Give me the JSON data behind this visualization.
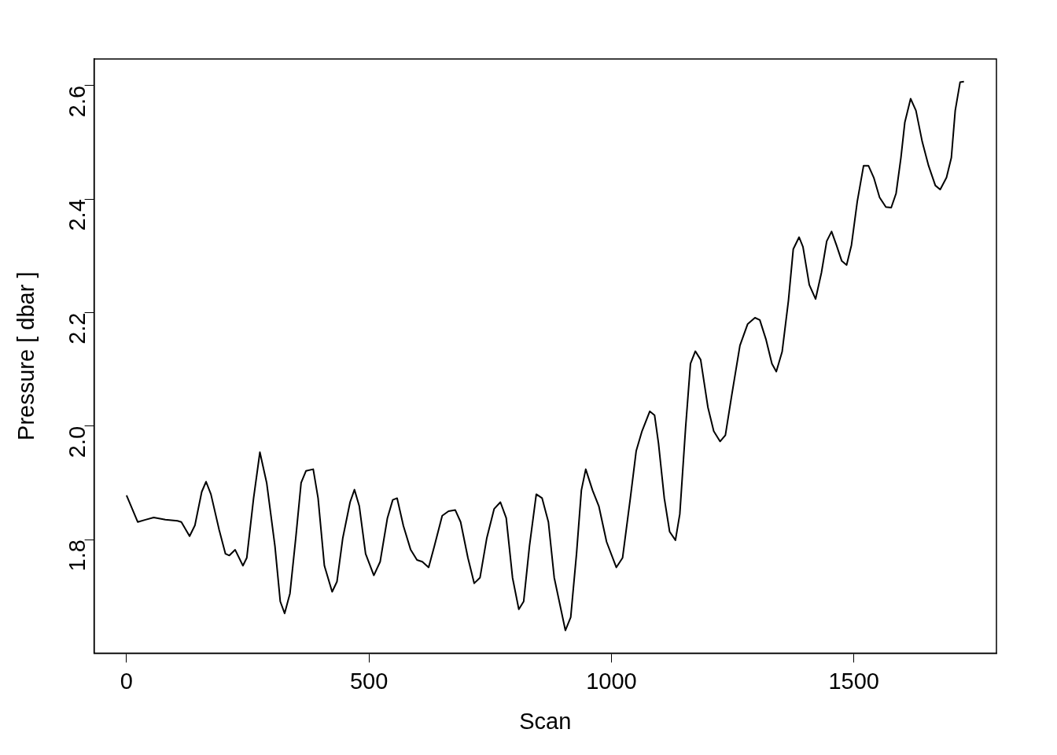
{
  "chart_data": {
    "type": "line",
    "xlabel": "Scan",
    "ylabel": "Pressure [ dbar ]",
    "xlim": [
      -67,
      1794
    ],
    "ylim": [
      1.6,
      2.647
    ],
    "xticks": [
      0,
      500,
      1000,
      1500
    ],
    "yticks": [
      1.8,
      {
        "value": 2,
        "label": "2.0"
      },
      2.2,
      2.4,
      2.6
    ],
    "grid": false,
    "legend": false,
    "marker": "none",
    "line_style": "solid",
    "series": [
      {
        "color": "#000000",
        "x": [
          0,
          23,
          39,
          56,
          80,
          105,
          113,
          130,
          141,
          155,
          164,
          174,
          191,
          204,
          212,
          224,
          240,
          248,
          262,
          275,
          289,
          306,
          317,
          326,
          337,
          349,
          360,
          370,
          385,
          395,
          408,
          424,
          434,
          446,
          461,
          470,
          480,
          493,
          510,
          523,
          538,
          549,
          558,
          571,
          586,
          599,
          610,
          623,
          635,
          651,
          664,
          678,
          689,
          704,
          717,
          729,
          743,
          758,
          771,
          783,
          796,
          809,
          819,
          831,
          845,
          857,
          870,
          882,
          905,
          916,
          928,
          938,
          947,
          961,
          974,
          990,
          1010,
          1023,
          1039,
          1051,
          1063,
          1079,
          1089,
          1097,
          1109,
          1120,
          1132,
          1141,
          1153,
          1163,
          1173,
          1184,
          1199,
          1211,
          1224,
          1235,
          1248,
          1265,
          1281,
          1296,
          1306,
          1319,
          1331,
          1340,
          1352,
          1365,
          1375,
          1387,
          1395,
          1408,
          1421,
          1433,
          1444,
          1454,
          1464,
          1475,
          1485,
          1495,
          1507,
          1520,
          1530,
          1541,
          1553,
          1566,
          1577,
          1587,
          1597,
          1605,
          1617,
          1628,
          1641,
          1654,
          1668,
          1678,
          1691,
          1701,
          1709,
          1719,
          1727
        ],
        "values": [
          1.878,
          1.831,
          1.835,
          1.839,
          1.835,
          1.833,
          1.831,
          1.806,
          1.825,
          1.884,
          1.902,
          1.88,
          1.817,
          1.775,
          1.772,
          1.782,
          1.754,
          1.768,
          1.873,
          1.954,
          1.9,
          1.789,
          1.691,
          1.67,
          1.705,
          1.803,
          1.9,
          1.921,
          1.924,
          1.873,
          1.754,
          1.708,
          1.726,
          1.803,
          1.866,
          1.888,
          1.859,
          1.775,
          1.737,
          1.761,
          1.838,
          1.87,
          1.873,
          1.824,
          1.782,
          1.764,
          1.761,
          1.751,
          1.789,
          1.842,
          1.85,
          1.852,
          1.831,
          1.768,
          1.723,
          1.733,
          1.803,
          1.854,
          1.866,
          1.838,
          1.733,
          1.677,
          1.691,
          1.789,
          1.88,
          1.873,
          1.831,
          1.733,
          1.64,
          1.663,
          1.775,
          1.887,
          1.924,
          1.887,
          1.859,
          1.796,
          1.751,
          1.768,
          1.873,
          1.956,
          1.991,
          2.026,
          2.019,
          1.97,
          1.873,
          1.814,
          1.799,
          1.845,
          1.998,
          2.11,
          2.132,
          2.117,
          2.033,
          1.991,
          1.973,
          1.984,
          2.054,
          2.142,
          2.18,
          2.191,
          2.187,
          2.152,
          2.11,
          2.096,
          2.131,
          2.221,
          2.312,
          2.333,
          2.316,
          2.249,
          2.224,
          2.27,
          2.326,
          2.343,
          2.319,
          2.291,
          2.284,
          2.319,
          2.396,
          2.459,
          2.459,
          2.438,
          2.403,
          2.386,
          2.385,
          2.41,
          2.473,
          2.535,
          2.577,
          2.556,
          2.501,
          2.459,
          2.424,
          2.417,
          2.438,
          2.473,
          2.556,
          2.606,
          2.607
        ]
      }
    ]
  }
}
